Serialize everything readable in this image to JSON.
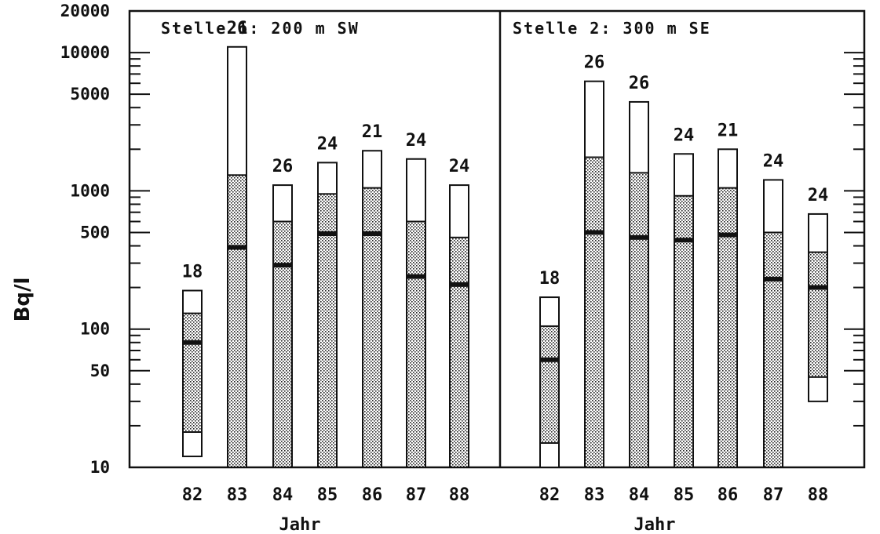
{
  "chart_data": {
    "type": "bar",
    "ylabel": "Bq/l",
    "xlabel": "Jahr",
    "yscale": "log",
    "ylim": [
      10,
      20000
    ],
    "yticks": [
      10,
      50,
      100,
      500,
      1000,
      5000,
      10000,
      20000
    ],
    "ytick_labels": [
      "10",
      "50",
      "100",
      "500",
      "1000",
      "5000",
      "10000",
      "20000"
    ],
    "categories": [
      "82",
      "83",
      "84",
      "85",
      "86",
      "87",
      "88"
    ],
    "panels": [
      {
        "title": "Stelle 1: 200 m SW",
        "bars": [
          {
            "year": "82",
            "n": "18",
            "min": 12,
            "p_low": 18,
            "median": 80,
            "p_high": 130,
            "max": 190
          },
          {
            "year": "83",
            "n": "26",
            "min": 10,
            "p_low": 10,
            "median": 390,
            "p_high": 1300,
            "max": 11000
          },
          {
            "year": "84",
            "n": "26",
            "min": 10,
            "p_low": 10,
            "median": 290,
            "p_high": 600,
            "max": 1100
          },
          {
            "year": "85",
            "n": "24",
            "min": 10,
            "p_low": 10,
            "median": 490,
            "p_high": 950,
            "max": 1600
          },
          {
            "year": "86",
            "n": "21",
            "min": 10,
            "p_low": 10,
            "median": 490,
            "p_high": 1050,
            "max": 1950
          },
          {
            "year": "87",
            "n": "24",
            "min": 10,
            "p_low": 10,
            "median": 240,
            "p_high": 600,
            "max": 1700
          },
          {
            "year": "88",
            "n": "24",
            "min": 10,
            "p_low": 10,
            "median": 210,
            "p_high": 460,
            "max": 1100
          }
        ]
      },
      {
        "title": "Stelle 2: 300 m SE",
        "bars": [
          {
            "year": "82",
            "n": "18",
            "min": 10,
            "p_low": 15,
            "median": 60,
            "p_high": 105,
            "max": 170
          },
          {
            "year": "83",
            "n": "26",
            "min": 10,
            "p_low": 10,
            "median": 500,
            "p_high": 1750,
            "max": 6200
          },
          {
            "year": "84",
            "n": "26",
            "min": 10,
            "p_low": 10,
            "median": 460,
            "p_high": 1350,
            "max": 4400
          },
          {
            "year": "85",
            "n": "24",
            "min": 10,
            "p_low": 10,
            "median": 440,
            "p_high": 920,
            "max": 1850
          },
          {
            "year": "86",
            "n": "21",
            "min": 10,
            "p_low": 10,
            "median": 480,
            "p_high": 1050,
            "max": 2000
          },
          {
            "year": "87",
            "n": "24",
            "min": 10,
            "p_low": 10,
            "median": 230,
            "p_high": 500,
            "max": 1200
          },
          {
            "year": "88",
            "n": "24",
            "min": 30,
            "p_low": 45,
            "median": 200,
            "p_high": 360,
            "max": 680
          }
        ]
      }
    ]
  }
}
